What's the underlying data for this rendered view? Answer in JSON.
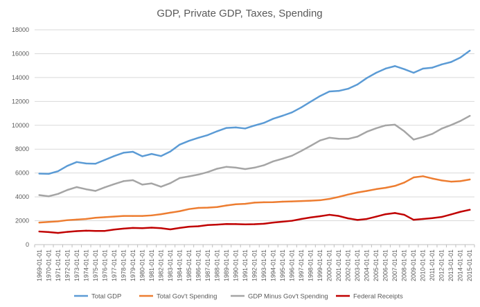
{
  "chart_data": {
    "type": "line",
    "title": "GDP, Private GDP, Taxes, Spending",
    "xlabel": "",
    "ylabel": "",
    "ylim": [
      0,
      18000
    ],
    "yticks": [
      0,
      2000,
      4000,
      6000,
      8000,
      10000,
      12000,
      14000,
      16000,
      18000
    ],
    "grid": true,
    "legend_position": "bottom",
    "categories": [
      "1969-01-01",
      "1970-01-01",
      "1971-01-01",
      "1972-01-01",
      "1973-01-01",
      "1974-01-01",
      "1975-01-01",
      "1976-01-01",
      "1977-01-01",
      "1978-01-01",
      "1979-01-01",
      "1980-01-01",
      "1981-01-01",
      "1982-01-01",
      "1983-01-01",
      "1984-01-01",
      "1985-01-01",
      "1986-01-01",
      "1987-01-01",
      "1988-01-01",
      "1989-01-01",
      "1990-01-01",
      "1991-01-01",
      "1992-01-01",
      "1993-01-01",
      "1994-01-01",
      "1995-01-01",
      "1996-01-01",
      "1997-01-01",
      "1998-01-01",
      "1999-01-01",
      "2000-01-01",
      "2001-01-01",
      "2002-01-01",
      "2003-01-01",
      "2004-01-01",
      "2005-01-01",
      "2006-01-01",
      "2007-01-01",
      "2008-01-01",
      "2009-01-01",
      "2010-01-01",
      "2011-01-01",
      "2012-01-01",
      "2013-01-01",
      "2014-01-01",
      "2015-01-01"
    ],
    "series": [
      {
        "name": "Total GDP",
        "color": "#5b9bd5",
        "values": [
          5950,
          5930,
          6150,
          6600,
          6920,
          6800,
          6780,
          7100,
          7420,
          7700,
          7780,
          7400,
          7600,
          7420,
          7800,
          8380,
          8700,
          8950,
          9180,
          9500,
          9780,
          9820,
          9730,
          9980,
          10200,
          10550,
          10800,
          11080,
          11500,
          11980,
          12450,
          12830,
          12880,
          13060,
          13420,
          13960,
          14400,
          14750,
          14960,
          14700,
          14400,
          14750,
          14830,
          15100,
          15300,
          15680,
          16250
        ]
      },
      {
        "name": "Total Gov't Spending",
        "color": "#ed7d31",
        "values": [
          1850,
          1900,
          1950,
          2050,
          2100,
          2150,
          2250,
          2300,
          2350,
          2400,
          2400,
          2400,
          2450,
          2550,
          2680,
          2800,
          2980,
          3080,
          3100,
          3150,
          3280,
          3380,
          3420,
          3520,
          3550,
          3560,
          3600,
          3620,
          3650,
          3680,
          3720,
          3830,
          4000,
          4200,
          4370,
          4500,
          4650,
          4760,
          4920,
          5200,
          5630,
          5730,
          5540,
          5380,
          5280,
          5320,
          5460
        ]
      },
      {
        "name": "GDP Minus Gov't Spending",
        "color": "#a5a5a5",
        "values": [
          4150,
          4050,
          4250,
          4580,
          4820,
          4640,
          4500,
          4800,
          5070,
          5320,
          5400,
          5030,
          5130,
          4850,
          5150,
          5580,
          5720,
          5870,
          6080,
          6360,
          6520,
          6450,
          6330,
          6450,
          6650,
          6980,
          7200,
          7450,
          7850,
          8280,
          8730,
          8960,
          8870,
          8860,
          9050,
          9460,
          9750,
          9990,
          10050,
          9500,
          8800,
          9020,
          9280,
          9720,
          10020,
          10360,
          10790
        ]
      },
      {
        "name": "Federal Receipts",
        "color": "#c00000",
        "values": [
          1100,
          1050,
          980,
          1070,
          1130,
          1170,
          1150,
          1150,
          1260,
          1340,
          1400,
          1380,
          1420,
          1380,
          1280,
          1400,
          1500,
          1540,
          1640,
          1680,
          1730,
          1720,
          1700,
          1710,
          1750,
          1850,
          1920,
          2000,
          2150,
          2280,
          2380,
          2500,
          2400,
          2200,
          2070,
          2150,
          2350,
          2550,
          2650,
          2500,
          2080,
          2150,
          2220,
          2320,
          2530,
          2750,
          2920
        ]
      }
    ]
  }
}
